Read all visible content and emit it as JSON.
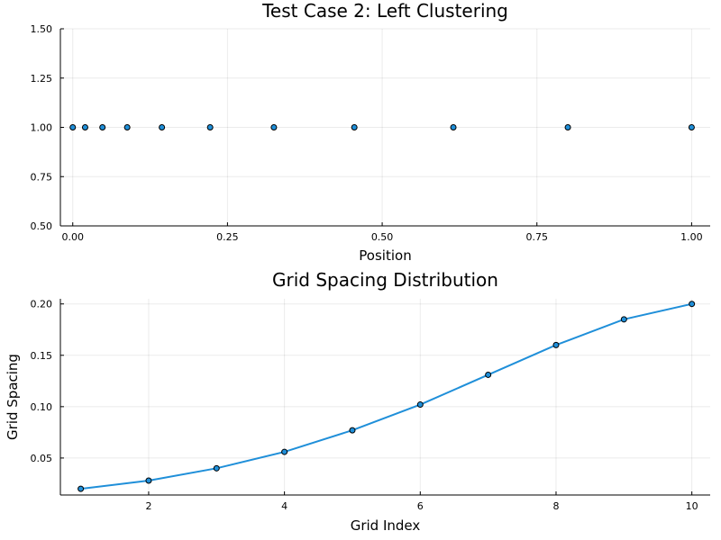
{
  "chart_data": [
    {
      "type": "scatter",
      "title": "Test Case 2: Left Clustering",
      "xlabel": "Position",
      "ylabel": "",
      "xlim": [
        -0.02,
        1.03
      ],
      "ylim": [
        0.5,
        1.5
      ],
      "xticks": [
        "0.00",
        "0.25",
        "0.50",
        "0.75",
        "1.00"
      ],
      "yticks": [
        "0.50",
        "0.75",
        "1.00",
        "1.25",
        "1.50"
      ],
      "grid": true,
      "series": [
        {
          "x": [
            0.0,
            0.02,
            0.048,
            0.088,
            0.144,
            0.222,
            0.325,
            0.455,
            0.615,
            0.8,
            1.0
          ],
          "y": [
            1,
            1,
            1,
            1,
            1,
            1,
            1,
            1,
            1,
            1,
            1
          ]
        }
      ]
    },
    {
      "type": "line",
      "title": "Grid Spacing Distribution",
      "xlabel": "Grid Index",
      "ylabel": "Grid Spacing",
      "xlim": [
        0.7,
        10.27
      ],
      "ylim": [
        0.014,
        0.205
      ],
      "xticks": [
        "2",
        "4",
        "6",
        "8",
        "10"
      ],
      "yticks": [
        "0.05",
        "0.10",
        "0.15",
        "0.20"
      ],
      "grid": true,
      "series": [
        {
          "x": [
            1,
            2,
            3,
            4,
            5,
            6,
            7,
            8,
            9,
            10
          ],
          "y": [
            0.02,
            0.028,
            0.04,
            0.056,
            0.077,
            0.102,
            0.131,
            0.16,
            0.185,
            0.2
          ],
          "color": "#1f8fd9",
          "markers": true
        }
      ]
    }
  ]
}
